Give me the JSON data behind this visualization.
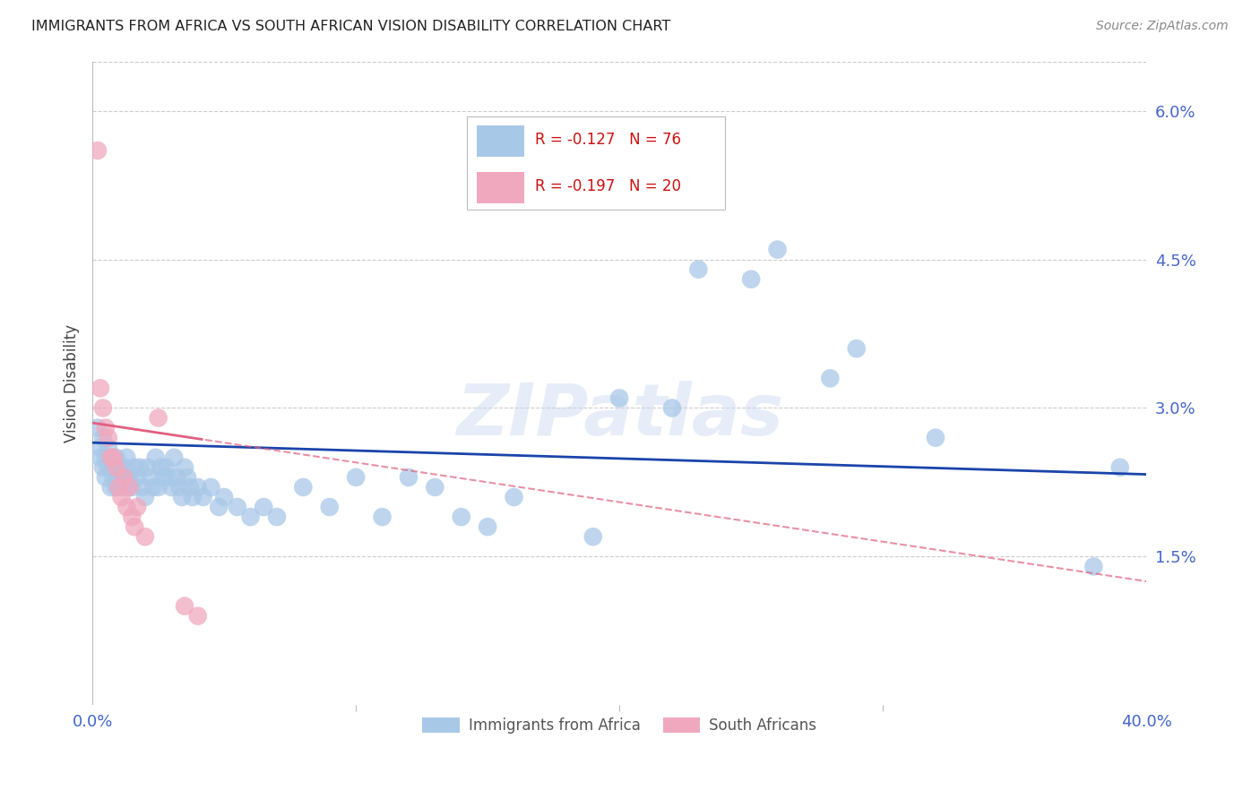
{
  "title": "IMMIGRANTS FROM AFRICA VS SOUTH AFRICAN VISION DISABILITY CORRELATION CHART",
  "source": "Source: ZipAtlas.com",
  "ylabel": "Vision Disability",
  "ytick_values": [
    0.015,
    0.03,
    0.045,
    0.06
  ],
  "ytick_labels": [
    "1.5%",
    "3.0%",
    "4.5%",
    "6.0%"
  ],
  "xlim": [
    0.0,
    0.4
  ],
  "ylim": [
    0.0,
    0.065
  ],
  "legend_blue_r": "R = -0.127",
  "legend_blue_n": "N = 76",
  "legend_pink_r": "R = -0.197",
  "legend_pink_n": "N = 20",
  "legend_label_blue": "Immigrants from Africa",
  "legend_label_pink": "South Africans",
  "watermark": "ZIPatlas",
  "blue_color": "#a8c8e8",
  "pink_color": "#f0a8be",
  "blue_line_color": "#1a44aa",
  "pink_line_color": "#e06080",
  "blue_intercept": 0.0265,
  "blue_slope": -0.008,
  "pink_intercept": 0.0285,
  "pink_slope": -0.04,
  "blue_scatter": [
    [
      0.002,
      0.028
    ],
    [
      0.003,
      0.025
    ],
    [
      0.003,
      0.026
    ],
    [
      0.004,
      0.024
    ],
    [
      0.004,
      0.027
    ],
    [
      0.005,
      0.025
    ],
    [
      0.005,
      0.023
    ],
    [
      0.006,
      0.026
    ],
    [
      0.006,
      0.024
    ],
    [
      0.007,
      0.022
    ],
    [
      0.007,
      0.025
    ],
    [
      0.008,
      0.024
    ],
    [
      0.008,
      0.023
    ],
    [
      0.009,
      0.025
    ],
    [
      0.009,
      0.022
    ],
    [
      0.01,
      0.024
    ],
    [
      0.01,
      0.023
    ],
    [
      0.011,
      0.022
    ],
    [
      0.012,
      0.023
    ],
    [
      0.012,
      0.024
    ],
    [
      0.013,
      0.022
    ],
    [
      0.013,
      0.025
    ],
    [
      0.014,
      0.023
    ],
    [
      0.015,
      0.022
    ],
    [
      0.016,
      0.024
    ],
    [
      0.017,
      0.023
    ],
    [
      0.018,
      0.024
    ],
    [
      0.019,
      0.022
    ],
    [
      0.02,
      0.021
    ],
    [
      0.021,
      0.024
    ],
    [
      0.022,
      0.023
    ],
    [
      0.023,
      0.022
    ],
    [
      0.024,
      0.025
    ],
    [
      0.025,
      0.022
    ],
    [
      0.026,
      0.024
    ],
    [
      0.027,
      0.023
    ],
    [
      0.028,
      0.024
    ],
    [
      0.029,
      0.023
    ],
    [
      0.03,
      0.022
    ],
    [
      0.031,
      0.025
    ],
    [
      0.032,
      0.023
    ],
    [
      0.033,
      0.022
    ],
    [
      0.034,
      0.021
    ],
    [
      0.035,
      0.024
    ],
    [
      0.036,
      0.023
    ],
    [
      0.037,
      0.022
    ],
    [
      0.038,
      0.021
    ],
    [
      0.04,
      0.022
    ],
    [
      0.042,
      0.021
    ],
    [
      0.045,
      0.022
    ],
    [
      0.048,
      0.02
    ],
    [
      0.05,
      0.021
    ],
    [
      0.055,
      0.02
    ],
    [
      0.06,
      0.019
    ],
    [
      0.065,
      0.02
    ],
    [
      0.07,
      0.019
    ],
    [
      0.08,
      0.022
    ],
    [
      0.09,
      0.02
    ],
    [
      0.1,
      0.023
    ],
    [
      0.11,
      0.019
    ],
    [
      0.12,
      0.023
    ],
    [
      0.13,
      0.022
    ],
    [
      0.14,
      0.019
    ],
    [
      0.15,
      0.018
    ],
    [
      0.16,
      0.021
    ],
    [
      0.19,
      0.017
    ],
    [
      0.2,
      0.031
    ],
    [
      0.22,
      0.03
    ],
    [
      0.23,
      0.044
    ],
    [
      0.25,
      0.043
    ],
    [
      0.26,
      0.046
    ],
    [
      0.28,
      0.033
    ],
    [
      0.29,
      0.036
    ],
    [
      0.32,
      0.027
    ],
    [
      0.38,
      0.014
    ],
    [
      0.39,
      0.024
    ]
  ],
  "pink_scatter": [
    [
      0.002,
      0.056
    ],
    [
      0.003,
      0.032
    ],
    [
      0.004,
      0.03
    ],
    [
      0.005,
      0.028
    ],
    [
      0.006,
      0.027
    ],
    [
      0.007,
      0.025
    ],
    [
      0.008,
      0.025
    ],
    [
      0.009,
      0.024
    ],
    [
      0.01,
      0.022
    ],
    [
      0.011,
      0.021
    ],
    [
      0.012,
      0.023
    ],
    [
      0.013,
      0.02
    ],
    [
      0.014,
      0.022
    ],
    [
      0.015,
      0.019
    ],
    [
      0.016,
      0.018
    ],
    [
      0.017,
      0.02
    ],
    [
      0.02,
      0.017
    ],
    [
      0.025,
      0.029
    ],
    [
      0.035,
      0.01
    ],
    [
      0.04,
      0.009
    ]
  ]
}
